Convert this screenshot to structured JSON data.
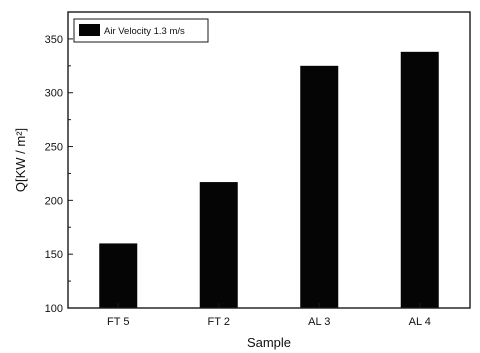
{
  "chart_data": {
    "type": "bar",
    "categories": [
      "FT 5",
      "FT 2",
      "AL 3",
      "AL 4"
    ],
    "series": [
      {
        "name": "Air Velocity 1.3 m/s",
        "values": [
          160,
          217,
          325,
          338
        ]
      }
    ],
    "xlabel": "Sample",
    "ylabel": "Q[KW / m²]",
    "ylim": [
      100,
      375
    ],
    "yticks": [
      100,
      150,
      200,
      250,
      300,
      350
    ],
    "grid": false,
    "legend_position": "top-left",
    "colors": {
      "bar": "#050505",
      "axis": "#1a1a1a"
    }
  }
}
